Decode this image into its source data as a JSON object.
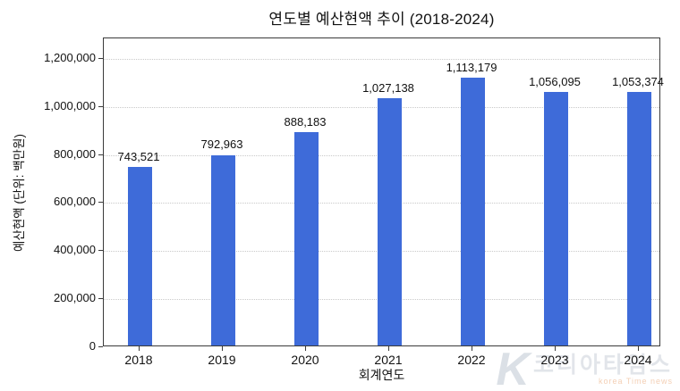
{
  "chart_data": {
    "type": "bar",
    "title": "연도별 예산현액 추이 (2018-2024)",
    "xlabel": "회계연도",
    "ylabel": "예산현액 (단위: 백만원)",
    "categories": [
      "2018",
      "2019",
      "2020",
      "2021",
      "2022",
      "2023",
      "2024"
    ],
    "values": [
      743521,
      792963,
      888183,
      1027138,
      1113179,
      1056095,
      1053374
    ],
    "value_labels": [
      "743,521",
      "792,963",
      "888,183",
      "1,027,138",
      "1,113,179",
      "1,056,095",
      "1,053,374"
    ],
    "ytick_values": [
      0,
      200000,
      400000,
      600000,
      800000,
      1000000,
      1200000
    ],
    "ytick_labels": [
      "0",
      "200,000",
      "400,000",
      "600,000",
      "800,000",
      "1,000,000",
      "1,200,000"
    ],
    "ylim": [
      0,
      1285000
    ],
    "bar_color": "#3E6BD9",
    "grid": "horizontal-dotted",
    "grid_color": "#c9c9c9",
    "spine_color": "#3a3a3a",
    "legend_position": "none"
  },
  "watermark": {
    "logo": "K",
    "text": "코리아타임스",
    "subtext": "korea Time news"
  }
}
